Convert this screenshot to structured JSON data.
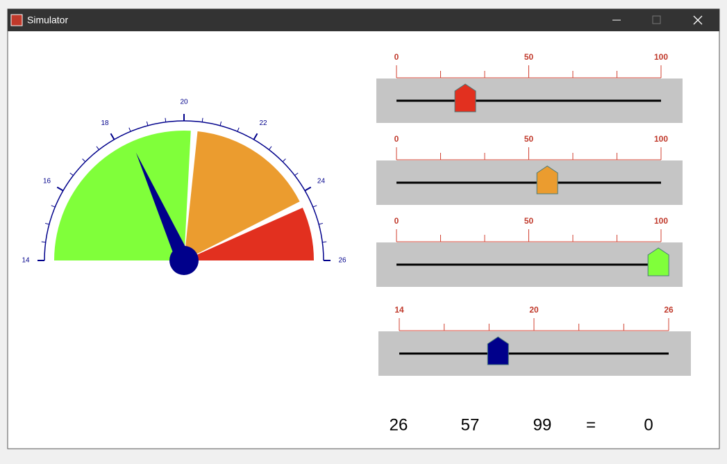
{
  "window": {
    "title": "Simulator"
  },
  "gauge": {
    "min": 14,
    "max": 26,
    "ticks": [
      14,
      16,
      18,
      20,
      22,
      24,
      26
    ],
    "minor_per_major": 4,
    "color": "#00008b",
    "zones": [
      {
        "from": 14,
        "to": 20.2,
        "color": "#80ff3a"
      },
      {
        "from": 20.4,
        "to": 24.2,
        "color": "#eb9c2f"
      },
      {
        "from": 24.4,
        "to": 26,
        "color": "#e2301f"
      }
    ]
  },
  "sliders": [
    {
      "min": 0,
      "max": 100,
      "ticks": [
        0,
        50,
        100
      ],
      "minor_divisions": 6,
      "value": 26,
      "color": "#e2301f"
    },
    {
      "min": 0,
      "max": 100,
      "ticks": [
        0,
        50,
        100
      ],
      "minor_divisions": 6,
      "value": 57,
      "color": "#eb9c2f"
    },
    {
      "min": 0,
      "max": 100,
      "ticks": [
        0,
        50,
        100
      ],
      "minor_divisions": 6,
      "value": 99,
      "color": "#80ff3a"
    },
    {
      "min": 14,
      "max": 26,
      "ticks": [
        14,
        20,
        26
      ],
      "minor_divisions": 6,
      "value": 18.4,
      "color": "#00008b"
    }
  ],
  "readout": {
    "equals": "=",
    "result": "0"
  }
}
